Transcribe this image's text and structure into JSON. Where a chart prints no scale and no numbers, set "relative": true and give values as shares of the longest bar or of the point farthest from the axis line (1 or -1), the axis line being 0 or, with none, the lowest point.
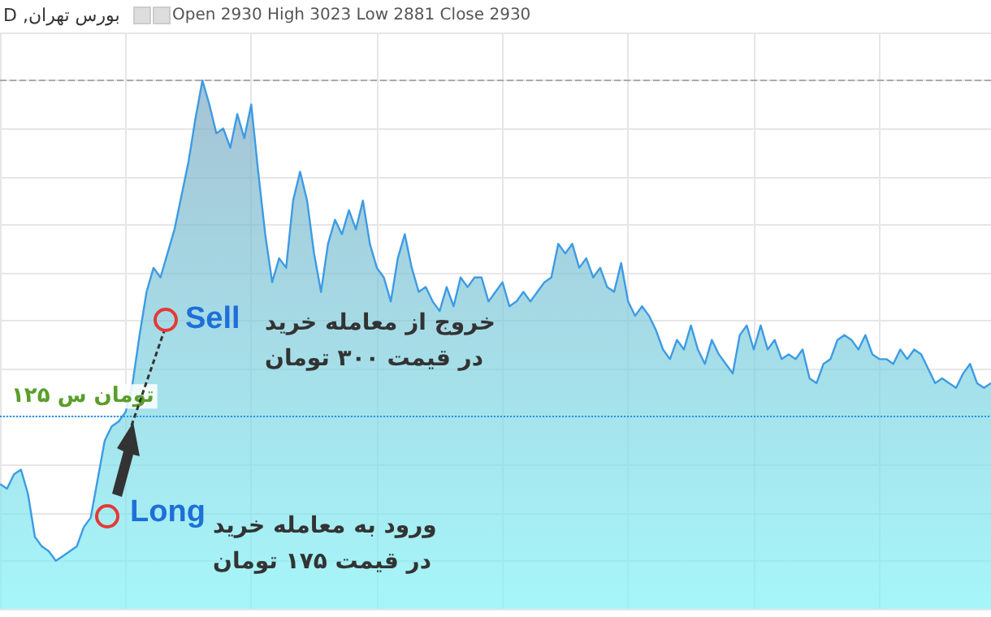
{
  "chart_data": {
    "type": "area",
    "title": "بورس تهران, D",
    "subtitle": "Open 2930 High 3023 Low 2881 Close 2930",
    "relative": true,
    "grid": true,
    "color": "#3d9be3",
    "categories": [
      null,
      null,
      null,
      null,
      null,
      null,
      null,
      null,
      null,
      null,
      null,
      null,
      null,
      null,
      null,
      null,
      null,
      null,
      null,
      null,
      null,
      null,
      null,
      null,
      null,
      null,
      null,
      null,
      null,
      null,
      null,
      null,
      null,
      null,
      null,
      null,
      null,
      null,
      null,
      null,
      null,
      null,
      null,
      null,
      null,
      null,
      null,
      null,
      null,
      null,
      null,
      null,
      null,
      null,
      null,
      null,
      null,
      null,
      null,
      null,
      null,
      null,
      null,
      null,
      null,
      null,
      null,
      null,
      null,
      null,
      null,
      null,
      null,
      null,
      null,
      null,
      null,
      null,
      null,
      null,
      null,
      null,
      null,
      null,
      null,
      null,
      null,
      null,
      null,
      null,
      null,
      null,
      null,
      null,
      null,
      null,
      null,
      null,
      null,
      null,
      null,
      null,
      null,
      null,
      null,
      null,
      null,
      null,
      null,
      null,
      null,
      null,
      null,
      null,
      null,
      null,
      null,
      null,
      null,
      null,
      null,
      null,
      null,
      null,
      null,
      null,
      null,
      null,
      null,
      null,
      null,
      null,
      null,
      null,
      null,
      null,
      null,
      null,
      null,
      null,
      null,
      null,
      null
    ],
    "values": [
      0.16,
      0.15,
      0.18,
      0.19,
      0.14,
      0.05,
      0.03,
      0.02,
      0,
      0.01,
      0.02,
      0.03,
      0.07,
      0.09,
      0.17,
      0.25,
      0.28,
      0.29,
      0.31,
      0.37,
      0.47,
      0.56,
      0.61,
      0.59,
      0.64,
      0.69,
      0.76,
      0.83,
      0.92,
      1,
      0.95,
      0.89,
      0.9,
      0.86,
      0.93,
      0.88,
      0.95,
      0.81,
      0.68,
      0.58,
      0.63,
      0.61,
      0.75,
      0.81,
      0.75,
      0.64,
      0.56,
      0.66,
      0.71,
      0.68,
      0.73,
      0.69,
      0.75,
      0.66,
      0.61,
      0.59,
      0.54,
      0.63,
      0.68,
      0.61,
      0.56,
      0.57,
      0.54,
      0.52,
      0.57,
      0.53,
      0.59,
      0.57,
      0.59,
      0.59,
      0.54,
      0.56,
      0.58,
      0.53,
      0.54,
      0.56,
      0.54,
      0.56,
      0.58,
      0.59,
      0.66,
      0.64,
      0.66,
      0.61,
      0.63,
      0.59,
      0.61,
      0.57,
      0.56,
      0.62,
      0.54,
      0.51,
      0.53,
      0.51,
      0.48,
      0.44,
      0.42,
      0.46,
      0.44,
      0.49,
      0.44,
      0.41,
      0.46,
      0.43,
      0.41,
      0.39,
      0.47,
      0.49,
      0.44,
      0.49,
      0.44,
      0.46,
      0.42,
      0.43,
      0.42,
      0.44,
      0.38,
      0.37,
      0.41,
      0.42,
      0.46,
      0.47,
      0.46,
      0.44,
      0.47,
      0.43,
      0.42,
      0.42,
      0.41,
      0.44,
      0.42,
      0.44,
      0.43,
      0.4,
      0.37,
      0.38,
      0.37,
      0.36,
      0.39,
      0.41,
      0.37,
      0.36,
      0.37
    ],
    "ref_lines": [
      {
        "axis": "y",
        "value": 0.3,
        "label": "۱۲۵ تومان س",
        "color": "#2196f3",
        "line_style": "dotted"
      },
      {
        "axis": "y",
        "value": 1,
        "color": "#aaaaaa",
        "line_style": "dashed"
      }
    ],
    "annotations": [
      "Sell",
      "خروج از معامله خرید",
      "در قیمت ۳۰۰ تومان",
      "Long",
      "ورود به معامله خرید",
      "در قیمت ۱۷۵ تومان"
    ]
  }
}
